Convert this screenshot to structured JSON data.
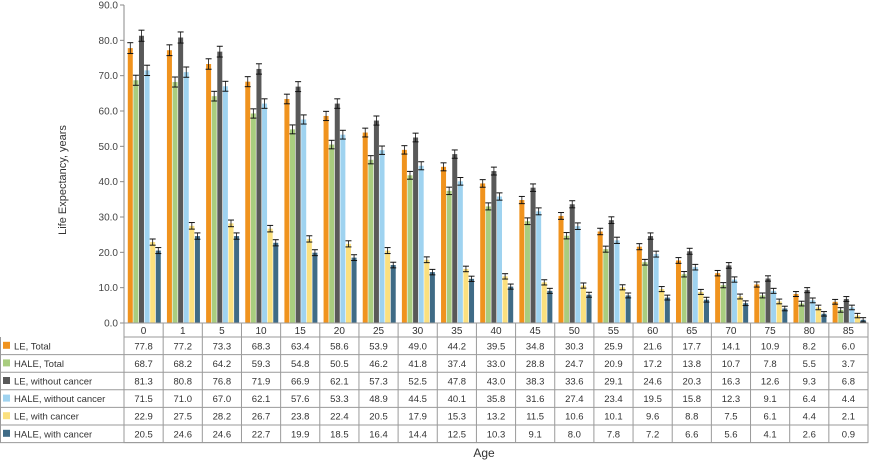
{
  "chart_data": {
    "type": "bar",
    "xlabel": "Age",
    "ylabel": "Life Expectancy, years",
    "ylim": [
      0,
      90
    ],
    "yticks": [
      "0.0",
      "10.0",
      "20.0",
      "30.0",
      "40.0",
      "50.0",
      "60.0",
      "70.0",
      "80.0",
      "90.0"
    ],
    "grid": false,
    "legend": "table-left",
    "categories": [
      "0",
      "1",
      "5",
      "10",
      "15",
      "20",
      "25",
      "30",
      "35",
      "40",
      "45",
      "50",
      "55",
      "60",
      "65",
      "70",
      "75",
      "80",
      "85"
    ],
    "series": [
      {
        "name": "LE, Total",
        "color": "#f0931e",
        "values": [
          77.8,
          77.2,
          73.3,
          68.3,
          63.4,
          58.6,
          53.9,
          49.0,
          44.2,
          39.5,
          34.8,
          30.3,
          25.9,
          21.6,
          17.7,
          14.1,
          10.9,
          8.2,
          6.0
        ],
        "labels": [
          "77.8",
          "77.2",
          "73.3",
          "68.3",
          "63.4",
          "58.6",
          "53.9",
          "49.0",
          "44.2",
          "39.5",
          "34.8",
          "30.3",
          "25.9",
          "21.6",
          "17.7",
          "14.1",
          "10.9",
          "8.2",
          "6.0"
        ]
      },
      {
        "name": "HALE, Total",
        "color": "#a9cd7f",
        "values": [
          68.7,
          68.2,
          64.2,
          59.3,
          54.8,
          50.5,
          46.2,
          41.8,
          37.4,
          33.0,
          28.8,
          24.7,
          20.9,
          17.2,
          13.8,
          10.7,
          7.8,
          5.5,
          3.7
        ],
        "labels": [
          "68.7",
          "68.2",
          "64.2",
          "59.3",
          "54.8",
          "50.5",
          "46.2",
          "41.8",
          "37.4",
          "33.0",
          "28.8",
          "24.7",
          "20.9",
          "17.2",
          "13.8",
          "10.7",
          "7.8",
          "5.5",
          "3.7"
        ]
      },
      {
        "name": "LE, without cancer",
        "color": "#595959",
        "values": [
          81.3,
          80.8,
          76.8,
          71.9,
          66.9,
          62.1,
          57.3,
          52.5,
          47.8,
          43.0,
          38.3,
          33.6,
          29.1,
          24.6,
          20.3,
          16.3,
          12.6,
          9.3,
          6.8
        ],
        "labels": [
          "81.3",
          "80.8",
          "76.8",
          "71.9",
          "66.9",
          "62.1",
          "57.3",
          "52.5",
          "47.8",
          "43.0",
          "38.3",
          "33.6",
          "29.1",
          "24.6",
          "20.3",
          "16.3",
          "12.6",
          "9.3",
          "6.8"
        ]
      },
      {
        "name": "HALE, without cancer",
        "color": "#9fd3f0",
        "values": [
          71.5,
          71.0,
          67.0,
          62.1,
          57.6,
          53.3,
          48.9,
          44.5,
          40.1,
          35.8,
          31.6,
          27.4,
          23.4,
          19.5,
          15.8,
          12.3,
          9.1,
          6.4,
          4.4
        ],
        "labels": [
          "71.5",
          "71.0",
          "67.0",
          "62.1",
          "57.6",
          "53.3",
          "48.9",
          "44.5",
          "40.1",
          "35.8",
          "31.6",
          "27.4",
          "23.4",
          "19.5",
          "15.8",
          "12.3",
          "9.1",
          "6.4",
          "4.4"
        ]
      },
      {
        "name": "LE, with cancer",
        "color": "#fbe07e",
        "values": [
          22.9,
          27.5,
          28.2,
          26.7,
          23.8,
          22.4,
          20.5,
          17.9,
          15.3,
          13.2,
          11.5,
          10.6,
          10.1,
          9.6,
          8.8,
          7.5,
          6.1,
          4.4,
          2.1
        ],
        "labels": [
          "22.9",
          "27.5",
          "28.2",
          "26.7",
          "23.8",
          "22.4",
          "20.5",
          "17.9",
          "15.3",
          "13.2",
          "11.5",
          "10.6",
          "10.1",
          "9.6",
          "8.8",
          "7.5",
          "6.1",
          "4.4",
          "2.1"
        ]
      },
      {
        "name": "HALE, with cancer",
        "color": "#3f6b86",
        "values": [
          20.5,
          24.6,
          24.6,
          22.7,
          19.9,
          18.5,
          16.4,
          14.4,
          12.5,
          10.3,
          9.1,
          8.0,
          7.8,
          7.2,
          6.6,
          5.6,
          4.1,
          2.6,
          0.9
        ],
        "labels": [
          "20.5",
          "24.6",
          "24.6",
          "22.7",
          "19.9",
          "18.5",
          "16.4",
          "14.4",
          "12.5",
          "10.3",
          "9.1",
          "8.0",
          "7.8",
          "7.2",
          "6.6",
          "5.6",
          "4.1",
          "2.6",
          "0.9"
        ]
      }
    ]
  }
}
